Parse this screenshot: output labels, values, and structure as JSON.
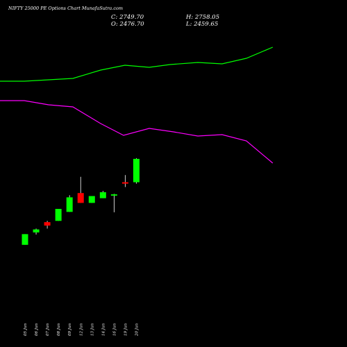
{
  "header": {
    "title": "NIFTY 25000 PE Options Chart MunafaSutra.com",
    "close": "C: 2749.70",
    "high": "H: 2758.05",
    "open": "O: 2476.70",
    "low": "L: 2459.65"
  },
  "chart_data": {
    "type": "candlestick",
    "title": "NIFTY 25000 PE Options Chart MunafaSutra.com",
    "xlabel": "",
    "ylabel": "",
    "categories": [
      "05 Jun",
      "06 Jun",
      "07 Jun",
      "08 Jun",
      "09 Jun",
      "12 Jun",
      "13 Jun",
      "14 Jun",
      "16 Jun",
      "19 Jun",
      "20 Jun"
    ],
    "candles": [
      {
        "date": "05 Jun",
        "open": 1745,
        "high": 1870,
        "low": 1745,
        "close": 1870,
        "direction": "up"
      },
      {
        "date": "06 Jun",
        "open": 1890,
        "high": 1935,
        "low": 1865,
        "close": 1925,
        "direction": "up"
      },
      {
        "date": "07 Jun",
        "open": 2010,
        "high": 2025,
        "low": 1935,
        "close": 1970,
        "direction": "down"
      },
      {
        "date": "08 Jun",
        "open": 2025,
        "high": 2165,
        "low": 2025,
        "close": 2165,
        "direction": "up"
      },
      {
        "date": "09 Jun",
        "open": 2130,
        "high": 2325,
        "low": 2130,
        "close": 2300,
        "direction": "up"
      },
      {
        "date": "12 Jun",
        "open": 2350,
        "high": 2540,
        "low": 2235,
        "close": 2235,
        "direction": "down"
      },
      {
        "date": "13 Jun",
        "open": 2235,
        "high": 2315,
        "low": 2235,
        "close": 2315,
        "direction": "up"
      },
      {
        "date": "14 Jun",
        "open": 2290,
        "high": 2375,
        "low": 2290,
        "close": 2360,
        "direction": "up"
      },
      {
        "date": "16 Jun",
        "open": 2320,
        "high": 2340,
        "low": 2125,
        "close": 2335,
        "direction": "up"
      },
      {
        "date": "19 Jun",
        "open": 2476.7,
        "high": 2560,
        "low": 2420,
        "close": 2460,
        "direction": "down"
      },
      {
        "date": "20 Jun",
        "open": 2476.7,
        "high": 2758.05,
        "low": 2459.65,
        "close": 2749.7,
        "direction": "up"
      }
    ],
    "bands": [
      {
        "color": "#00ff00",
        "points": [
          [
            0,
            117
          ],
          [
            35,
            117
          ],
          [
            70,
            115
          ],
          [
            105,
            113
          ],
          [
            145,
            101
          ],
          [
            180,
            94
          ],
          [
            215,
            97
          ],
          [
            245,
            93
          ],
          [
            285,
            90
          ],
          [
            320,
            92
          ],
          [
            355,
            84
          ],
          [
            393,
            68
          ]
        ]
      },
      {
        "color": "#ff00ff",
        "points": [
          [
            0,
            145
          ],
          [
            35,
            145
          ],
          [
            70,
            151
          ],
          [
            105,
            154
          ],
          [
            145,
            178
          ],
          [
            178,
            195
          ],
          [
            215,
            185
          ],
          [
            250,
            190
          ],
          [
            285,
            196
          ],
          [
            320,
            194
          ],
          [
            355,
            203
          ],
          [
            393,
            235
          ]
        ]
      }
    ],
    "price_range": [
      1500,
      3500
    ],
    "grid": false,
    "colors": {
      "background": "#000000",
      "up": "#00ff00",
      "down": "#ff0000",
      "wick": "#ffffff"
    }
  }
}
